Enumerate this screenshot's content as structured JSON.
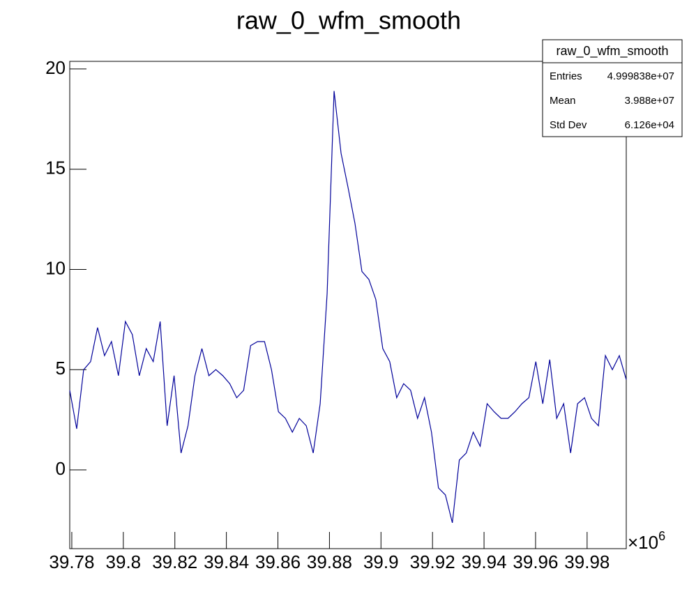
{
  "chart_data": {
    "type": "line",
    "title": "raw_0_wfm_smooth",
    "x_multiplier": "×10",
    "x_multiplier_exponent": "6",
    "x": [
      39.7792,
      39.7819,
      39.7846,
      39.7873,
      39.79,
      39.7927,
      39.7954,
      39.7981,
      39.8008,
      39.8035,
      39.8062,
      39.8089,
      39.8116,
      39.8143,
      39.817,
      39.8197,
      39.8224,
      39.8251,
      39.8278,
      39.8305,
      39.8332,
      39.8359,
      39.8386,
      39.8413,
      39.844,
      39.8467,
      39.8494,
      39.8521,
      39.8548,
      39.8575,
      39.8602,
      39.8629,
      39.8656,
      39.8683,
      39.871,
      39.8737,
      39.8764,
      39.8791,
      39.8818,
      39.8845,
      39.8872,
      39.8899,
      39.8926,
      39.8953,
      39.898,
      39.9007,
      39.9034,
      39.9061,
      39.9088,
      39.9115,
      39.9142,
      39.9169,
      39.9196,
      39.9223,
      39.925,
      39.9277,
      39.9304,
      39.9331,
      39.9358,
      39.9385,
      39.9412,
      39.9439,
      39.9466,
      39.9493,
      39.952,
      39.9547,
      39.9574,
      39.9601,
      39.9628,
      39.9655,
      39.9682,
      39.9709,
      39.9736,
      39.9763,
      39.979,
      39.9817,
      39.9844,
      39.9871,
      39.9898,
      39.9925,
      39.9952
    ],
    "series": [
      {
        "name": "raw_0_wfm_smooth",
        "color": "#000099",
        "values": [
          3.97,
          2.05,
          5.0,
          5.4,
          7.1,
          5.7,
          6.4,
          4.7,
          7.4,
          6.75,
          4.7,
          6.05,
          5.4,
          7.4,
          2.2,
          4.7,
          0.84,
          2.2,
          4.7,
          6.05,
          4.7,
          5.0,
          4.7,
          4.3,
          3.6,
          3.97,
          6.2,
          6.4,
          6.4,
          5.0,
          2.9,
          2.57,
          1.88,
          2.57,
          2.2,
          0.84,
          3.3,
          8.8,
          18.9,
          15.8,
          14.1,
          12.3,
          9.9,
          9.5,
          8.5,
          6.05,
          5.4,
          3.6,
          4.3,
          3.97,
          2.57,
          3.6,
          1.88,
          -0.9,
          -1.25,
          -2.64,
          0.49,
          0.84,
          1.88,
          1.18,
          3.3,
          2.9,
          2.57,
          2.57,
          2.9,
          3.3,
          3.6,
          5.4,
          3.3,
          5.5,
          2.57,
          3.3,
          0.84,
          3.3,
          3.6,
          2.57,
          2.2,
          5.7,
          5.0,
          5.7,
          4.5
        ]
      }
    ],
    "xlim": [
      39.7792,
      39.9952
    ],
    "ylim": [
      -3.93,
      20.38
    ],
    "xticks": [
      39.78,
      39.8,
      39.82,
      39.84,
      39.86,
      39.88,
      39.9,
      39.92,
      39.94,
      39.96,
      39.98
    ],
    "yticks": [
      0,
      5,
      10,
      15,
      20
    ],
    "stats_box": {
      "title": "raw_0_wfm_smooth",
      "rows": [
        [
          "Entries",
          "4.999838e+07"
        ],
        [
          "Mean",
          "3.988e+07"
        ],
        [
          "Std Dev",
          "6.126e+04"
        ]
      ]
    }
  }
}
